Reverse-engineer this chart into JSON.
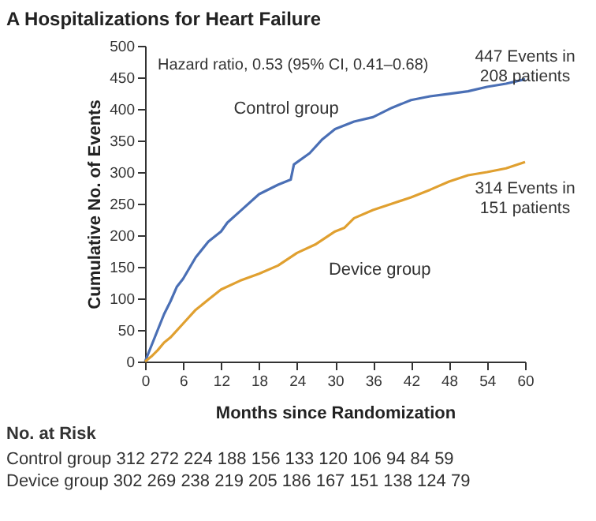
{
  "chart_data": {
    "type": "line",
    "title": "A  Hospitalizations for Heart Failure",
    "xlabel": "Months since Randomization",
    "ylabel": "Cumulative No. of Events",
    "xlim": [
      0,
      60
    ],
    "xticks": [
      0,
      6,
      12,
      18,
      24,
      30,
      36,
      42,
      48,
      54,
      60
    ],
    "ylim": [
      0,
      500
    ],
    "yticks": [
      0,
      50,
      100,
      150,
      200,
      250,
      300,
      350,
      400,
      450,
      500
    ],
    "grid": false,
    "line_style": "solid",
    "marker": "none",
    "series": [
      {
        "name": "Control group",
        "color": "#4a6fb5",
        "x": [
          0,
          1,
          2,
          3,
          4,
          5,
          6,
          8,
          10,
          12,
          13,
          15,
          18,
          21,
          23,
          23.5,
          26,
          28,
          30,
          33,
          36,
          39,
          42,
          45,
          48,
          51,
          54,
          57,
          60
        ],
        "values": [
          0,
          25,
          50,
          75,
          95,
          118,
          131,
          165,
          190,
          206,
          220,
          238,
          265,
          280,
          288,
          312,
          330,
          352,
          368,
          380,
          387,
          402,
          414,
          420,
          424,
          428,
          435,
          440,
          447
        ]
      },
      {
        "name": "Device group",
        "color": "#e0a030",
        "x": [
          0,
          1,
          2,
          3,
          4,
          6,
          8,
          10,
          12,
          15,
          18,
          21,
          24,
          27,
          30,
          31.5,
          33,
          36,
          39,
          42,
          45,
          48,
          51,
          54,
          57,
          60
        ],
        "values": [
          0,
          8,
          18,
          30,
          38,
          60,
          82,
          98,
          114,
          128,
          139,
          152,
          172,
          186,
          206,
          212,
          227,
          240,
          250,
          260,
          272,
          285,
          295,
          300,
          306,
          316
        ]
      }
    ],
    "annotations": [
      "Hazard ratio, 0.53 (95% CI, 0.41–0.68)",
      {
        "text": "447 Events in\n208 patients",
        "x": 60,
        "y": 447
      },
      {
        "text": "314 Events in\n151 patients",
        "x": 60,
        "y": 316
      },
      "No. at Risk",
      "Control group  312  272  224  188  156  133  120  106    94    84   59",
      "Device group   302  269  238  219  205  186  167  151  138  124   79"
    ]
  }
}
